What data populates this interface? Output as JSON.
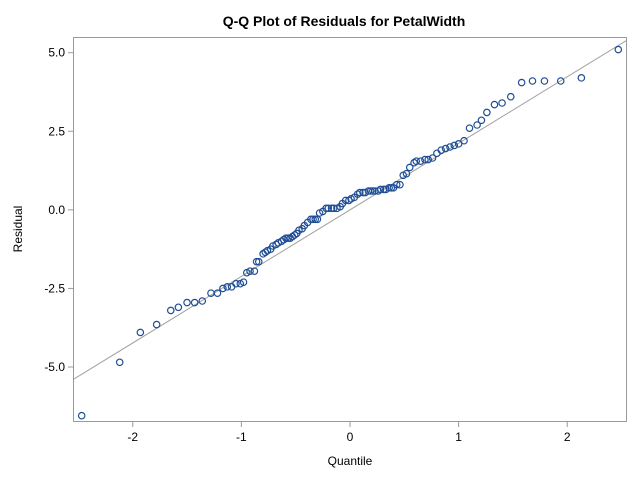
{
  "chart_data": {
    "type": "scatter",
    "title": "Q-Q Plot of Residuals for PetalWidth",
    "xlabel": "Quantile",
    "ylabel": "Residual",
    "xlim": [
      -2.55,
      2.55
    ],
    "ylim": [
      -6.75,
      5.5
    ],
    "x_ticks": [
      -2,
      -1,
      0,
      1,
      2
    ],
    "x_tick_labels": [
      "-2",
      "-1",
      "0",
      "1",
      "2"
    ],
    "y_ticks": [
      -5.0,
      -2.5,
      0.0,
      2.5,
      5.0
    ],
    "y_tick_labels": [
      "-5.0",
      "-2.5",
      "0.0",
      "2.5",
      "5.0"
    ],
    "grid": false,
    "legend": "none",
    "colors": {
      "marker": "#1f4e96",
      "reference_line": "#a0a0a0",
      "frame": "#9a9a9a",
      "text": "#000000"
    },
    "reference_line": {
      "x": [
        -2.55,
        2.55
      ],
      "y": [
        -5.4,
        5.4
      ]
    },
    "points": {
      "x": [
        -2.47,
        -2.12,
        -1.93,
        -1.78,
        -1.65,
        -1.58,
        -1.5,
        -1.43,
        -1.36,
        -1.28,
        -1.22,
        -1.17,
        -1.13,
        -1.09,
        -1.05,
        -1.01,
        -0.98,
        -0.95,
        -0.92,
        -0.88,
        -0.86,
        -0.84,
        -0.8,
        -0.78,
        -0.76,
        -0.73,
        -0.71,
        -0.68,
        -0.66,
        -0.63,
        -0.61,
        -0.59,
        -0.57,
        -0.55,
        -0.53,
        -0.51,
        -0.49,
        -0.47,
        -0.44,
        -0.42,
        -0.39,
        -0.36,
        -0.34,
        -0.32,
        -0.3,
        -0.28,
        -0.25,
        -0.22,
        -0.2,
        -0.17,
        -0.15,
        -0.12,
        -0.09,
        -0.07,
        -0.04,
        -0.01,
        0.01,
        0.04,
        0.07,
        0.09,
        0.12,
        0.14,
        0.17,
        0.19,
        0.21,
        0.23,
        0.26,
        0.28,
        0.31,
        0.33,
        0.36,
        0.38,
        0.4,
        0.43,
        0.46,
        0.49,
        0.52,
        0.55,
        0.59,
        0.61,
        0.65,
        0.69,
        0.72,
        0.76,
        0.8,
        0.84,
        0.88,
        0.92,
        0.96,
        1.0,
        1.05,
        1.1,
        1.17,
        1.21,
        1.26,
        1.33,
        1.4,
        1.48,
        1.58,
        1.68,
        1.79,
        1.94,
        2.13,
        2.47
      ],
      "y": [
        -6.55,
        -4.85,
        -3.9,
        -3.65,
        -3.2,
        -3.1,
        -2.95,
        -2.95,
        -2.9,
        -2.65,
        -2.65,
        -2.5,
        -2.45,
        -2.45,
        -2.35,
        -2.35,
        -2.3,
        -2.0,
        -1.95,
        -1.95,
        -1.65,
        -1.65,
        -1.4,
        -1.35,
        -1.3,
        -1.25,
        -1.15,
        -1.1,
        -1.05,
        -1.0,
        -0.95,
        -0.9,
        -0.9,
        -0.9,
        -0.85,
        -0.8,
        -0.75,
        -0.65,
        -0.6,
        -0.5,
        -0.4,
        -0.3,
        -0.3,
        -0.3,
        -0.3,
        -0.1,
        -0.05,
        0.05,
        0.05,
        0.05,
        0.05,
        0.05,
        0.1,
        0.2,
        0.3,
        0.3,
        0.35,
        0.4,
        0.5,
        0.55,
        0.55,
        0.55,
        0.6,
        0.6,
        0.6,
        0.6,
        0.6,
        0.65,
        0.65,
        0.65,
        0.7,
        0.7,
        0.7,
        0.8,
        0.8,
        1.1,
        1.15,
        1.35,
        1.5,
        1.55,
        1.55,
        1.6,
        1.6,
        1.65,
        1.8,
        1.9,
        1.95,
        2.0,
        2.05,
        2.1,
        2.2,
        2.6,
        2.7,
        2.85,
        3.1,
        3.35,
        3.4,
        3.6,
        4.05,
        4.1,
        4.1,
        4.1,
        4.2,
        5.1
      ]
    }
  }
}
